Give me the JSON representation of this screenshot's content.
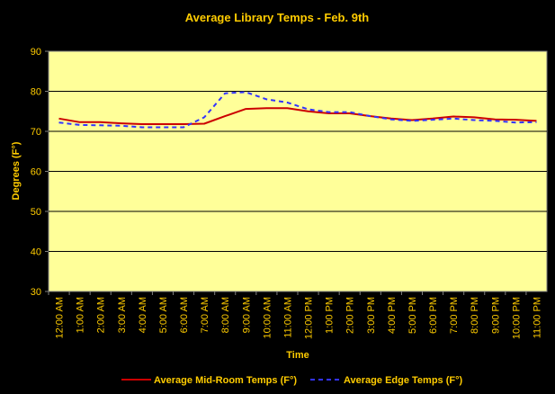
{
  "chart_data": {
    "type": "line",
    "title": "Average Library Temps - Feb. 9th",
    "xlabel": "Time",
    "ylabel": "Degrees (F°)",
    "ylim": [
      30,
      90
    ],
    "yticks": [
      "30",
      "40",
      "50",
      "60",
      "70",
      "80",
      "90"
    ],
    "categories": [
      "12:00 AM",
      "1:00 AM",
      "2:00 AM",
      "3:00 AM",
      "4:00 AM",
      "5:00 AM",
      "6:00 AM",
      "7:00 AM",
      "8:00 AM",
      "9:00 AM",
      "10:00 AM",
      "11:00 AM",
      "12:00 PM",
      "1:00 PM",
      "2:00 PM",
      "3:00 PM",
      "4:00 PM",
      "5:00 PM",
      "6:00 PM",
      "7:00 PM",
      "8:00 PM",
      "9:00 PM",
      "10:00 PM",
      "11:00 PM"
    ],
    "series": [
      {
        "name": "Average Mid-Room Temps (F°)",
        "color": "#CC0000",
        "style": "solid",
        "values": [
          73.2,
          72.3,
          72.3,
          72.0,
          71.8,
          71.8,
          71.8,
          71.9,
          73.8,
          75.6,
          75.8,
          75.8,
          75.0,
          74.5,
          74.5,
          73.8,
          73.2,
          72.8,
          73.2,
          73.7,
          73.5,
          73.0,
          72.9,
          72.6
        ]
      },
      {
        "name": "Average Edge Temps (F°)",
        "color": "#3333FF",
        "style": "dashed",
        "values": [
          72.2,
          71.6,
          71.5,
          71.4,
          71.0,
          71.0,
          71.0,
          73.5,
          79.5,
          79.8,
          78.0,
          77.2,
          75.5,
          74.8,
          74.8,
          73.8,
          73.0,
          72.6,
          72.9,
          73.2,
          72.8,
          72.6,
          72.2,
          72.3
        ]
      }
    ],
    "grid": true,
    "legend_position": "bottom"
  },
  "colors": {
    "background": "#000000",
    "plot_area": "#FFFF99",
    "text": "#FFCC00",
    "gridlines": "#000000"
  }
}
